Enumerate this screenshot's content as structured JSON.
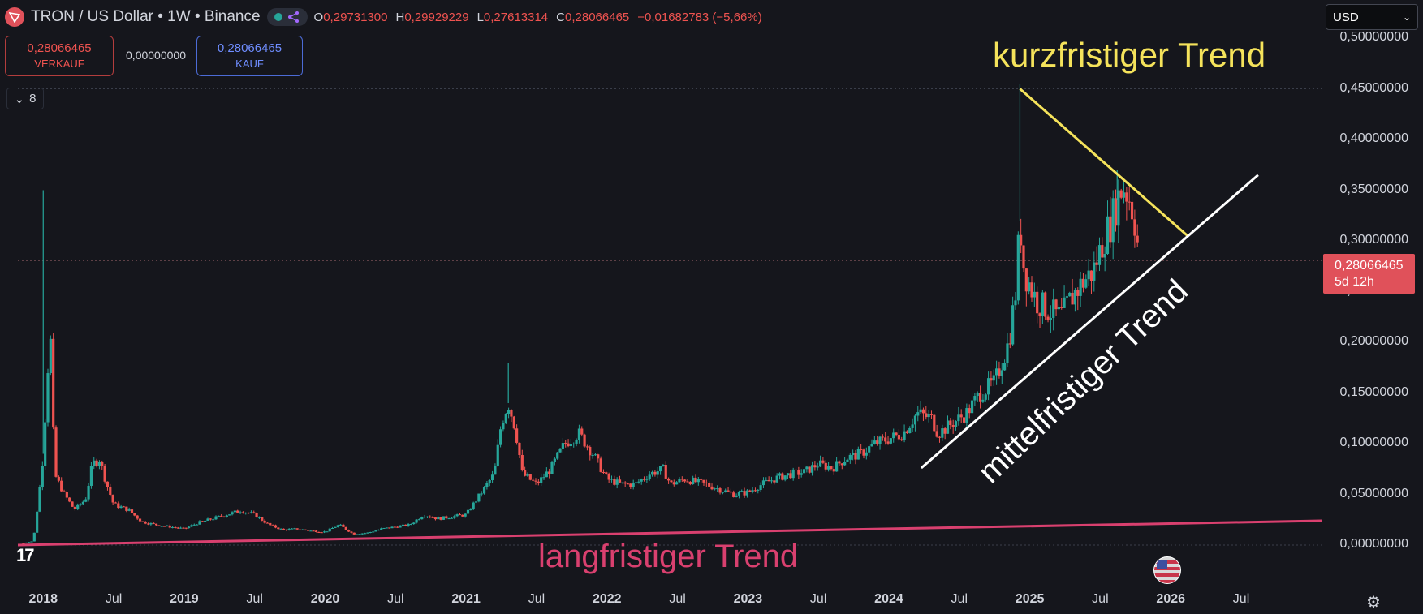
{
  "header": {
    "title": "TRON / US Dollar • 1W • Binance",
    "ohlc": {
      "o_key": "O",
      "o_val": "0,29731300",
      "h_key": "H",
      "h_val": "0,29929229",
      "l_key": "L",
      "l_val": "0,27613314",
      "c_key": "C",
      "c_val": "0,28066465",
      "change": "−0,01682783 (−5,66%)"
    },
    "icons": [
      "tron-logo-icon",
      "indicator-status-icon"
    ]
  },
  "trade": {
    "sell_price": "0,28066465",
    "sell_label": "VERKAUF",
    "spread": "0,00000000",
    "buy_price": "0,28066465",
    "buy_label": "KAUF"
  },
  "indicator_toggle": {
    "count": "8",
    "icon": "chevron-down-icon"
  },
  "currency_select": {
    "value": "USD",
    "icon": "chevron-down-icon"
  },
  "price_tag": {
    "price": "0,28066465",
    "countdown": "5d 12h"
  },
  "annotations": {
    "short_term": "kurzfristiger Trend",
    "mid_term": "mittelfristiger Trend",
    "long_term": "langfristiger Trend"
  },
  "branding": {
    "logo": "17"
  },
  "colors": {
    "up": "#26a69a",
    "down": "#ef5350",
    "short_trend": "#f5e35b",
    "mid_trend": "#ffffff",
    "long_trend": "#d9406f",
    "price_tag": "#e0515a"
  },
  "chart_data": {
    "type": "candlestick",
    "interval": "1W",
    "y_ticks": [
      "0,50000000",
      "0,45000000",
      "0,40000000",
      "0,35000000",
      "0,30000000",
      "0,25000000",
      "0,20000000",
      "0,15000000",
      "0,10000000",
      "0,05000000",
      "0,00000000"
    ],
    "ylim": [
      0,
      0.52
    ],
    "x_ticks": [
      {
        "label": "2018",
        "year": true,
        "t": 2018.0
      },
      {
        "label": "Jul",
        "year": false,
        "t": 2018.5
      },
      {
        "label": "2019",
        "year": true,
        "t": 2019.0
      },
      {
        "label": "Jul",
        "year": false,
        "t": 2019.5
      },
      {
        "label": "2020",
        "year": true,
        "t": 2020.0
      },
      {
        "label": "Jul",
        "year": false,
        "t": 2020.5
      },
      {
        "label": "2021",
        "year": true,
        "t": 2021.0
      },
      {
        "label": "Jul",
        "year": false,
        "t": 2021.5
      },
      {
        "label": "2022",
        "year": true,
        "t": 2022.0
      },
      {
        "label": "Jul",
        "year": false,
        "t": 2022.5
      },
      {
        "label": "2023",
        "year": true,
        "t": 2023.0
      },
      {
        "label": "Jul",
        "year": false,
        "t": 2023.5
      },
      {
        "label": "2024",
        "year": true,
        "t": 2024.0
      },
      {
        "label": "Jul",
        "year": false,
        "t": 2024.5
      },
      {
        "label": "2025",
        "year": true,
        "t": 2025.0
      },
      {
        "label": "Jul",
        "year": false,
        "t": 2025.5
      },
      {
        "label": "2026",
        "year": true,
        "t": 2026.0
      },
      {
        "label": "Jul",
        "year": false,
        "t": 2026.5
      }
    ],
    "xlim": [
      2017.82,
      2027.07
    ],
    "last_price": 0.28066465,
    "price_path": [
      [
        2017.86,
        0.002
      ],
      [
        2017.93,
        0.004
      ],
      [
        2017.97,
        0.05
      ],
      [
        2018.0,
        0.09
      ],
      [
        2018.03,
        0.17
      ],
      [
        2018.05,
        0.21
      ],
      [
        2018.08,
        0.07
      ],
      [
        2018.15,
        0.05
      ],
      [
        2018.22,
        0.035
      ],
      [
        2018.3,
        0.045
      ],
      [
        2018.35,
        0.08
      ],
      [
        2018.4,
        0.085
      ],
      [
        2018.45,
        0.06
      ],
      [
        2018.5,
        0.04
      ],
      [
        2018.6,
        0.035
      ],
      [
        2018.7,
        0.023
      ],
      [
        2018.8,
        0.02
      ],
      [
        2018.9,
        0.018
      ],
      [
        2019.0,
        0.016
      ],
      [
        2019.1,
        0.022
      ],
      [
        2019.2,
        0.026
      ],
      [
        2019.3,
        0.03
      ],
      [
        2019.4,
        0.034
      ],
      [
        2019.5,
        0.03
      ],
      [
        2019.6,
        0.02
      ],
      [
        2019.7,
        0.015
      ],
      [
        2019.8,
        0.016
      ],
      [
        2019.9,
        0.014
      ],
      [
        2020.0,
        0.013
      ],
      [
        2020.1,
        0.02
      ],
      [
        2020.2,
        0.011
      ],
      [
        2020.3,
        0.012
      ],
      [
        2020.4,
        0.016
      ],
      [
        2020.5,
        0.018
      ],
      [
        2020.6,
        0.02
      ],
      [
        2020.7,
        0.03
      ],
      [
        2020.8,
        0.026
      ],
      [
        2020.9,
        0.028
      ],
      [
        2021.0,
        0.03
      ],
      [
        2021.1,
        0.05
      ],
      [
        2021.2,
        0.07
      ],
      [
        2021.25,
        0.12
      ],
      [
        2021.3,
        0.14
      ],
      [
        2021.35,
        0.115
      ],
      [
        2021.4,
        0.07
      ],
      [
        2021.5,
        0.06
      ],
      [
        2021.6,
        0.075
      ],
      [
        2021.7,
        0.1
      ],
      [
        2021.8,
        0.11
      ],
      [
        2021.9,
        0.09
      ],
      [
        2022.0,
        0.065
      ],
      [
        2022.1,
        0.06
      ],
      [
        2022.2,
        0.06
      ],
      [
        2022.3,
        0.07
      ],
      [
        2022.4,
        0.075
      ],
      [
        2022.45,
        0.06
      ],
      [
        2022.55,
        0.065
      ],
      [
        2022.7,
        0.06
      ],
      [
        2022.8,
        0.055
      ],
      [
        2022.9,
        0.05
      ],
      [
        2023.0,
        0.052
      ],
      [
        2023.1,
        0.06
      ],
      [
        2023.2,
        0.066
      ],
      [
        2023.3,
        0.07
      ],
      [
        2023.4,
        0.072
      ],
      [
        2023.5,
        0.08
      ],
      [
        2023.6,
        0.076
      ],
      [
        2023.7,
        0.086
      ],
      [
        2023.8,
        0.09
      ],
      [
        2023.9,
        0.1
      ],
      [
        2024.0,
        0.105
      ],
      [
        2024.1,
        0.11
      ],
      [
        2024.2,
        0.13
      ],
      [
        2024.3,
        0.125
      ],
      [
        2024.35,
        0.11
      ],
      [
        2024.45,
        0.12
      ],
      [
        2024.55,
        0.13
      ],
      [
        2024.65,
        0.15
      ],
      [
        2024.75,
        0.16
      ],
      [
        2024.85,
        0.2
      ],
      [
        2024.9,
        0.25
      ],
      [
        2024.93,
        0.32
      ],
      [
        2024.96,
        0.27
      ],
      [
        2025.05,
        0.24
      ],
      [
        2025.15,
        0.23
      ],
      [
        2025.22,
        0.225
      ],
      [
        2025.3,
        0.245
      ],
      [
        2025.38,
        0.26
      ],
      [
        2025.45,
        0.27
      ],
      [
        2025.52,
        0.3
      ],
      [
        2025.58,
        0.32
      ],
      [
        2025.62,
        0.34
      ],
      [
        2025.66,
        0.355
      ],
      [
        2025.7,
        0.345
      ],
      [
        2025.74,
        0.325
      ],
      [
        2025.78,
        0.28066465
      ]
    ],
    "spikes": [
      {
        "t": 2018.0,
        "high": 0.35
      },
      {
        "t": 2024.93,
        "high": 0.455
      },
      {
        "t": 2021.3,
        "high": 0.18
      },
      {
        "t": 2025.62,
        "high": 0.37
      }
    ],
    "trendlines": [
      {
        "name": "kurzfristiger Trend",
        "from": [
          2024.93,
          0.45
        ],
        "to": [
          2026.12,
          0.305
        ]
      },
      {
        "name": "mittelfristiger Trend",
        "from": [
          2024.23,
          0.076
        ],
        "to": [
          2026.62,
          0.365
        ]
      },
      {
        "name": "langfristiger Trend",
        "from": [
          2017.82,
          0.0
        ],
        "to": [
          2027.07,
          0.024
        ]
      }
    ],
    "grid": false,
    "current_price_line": "dotted"
  }
}
